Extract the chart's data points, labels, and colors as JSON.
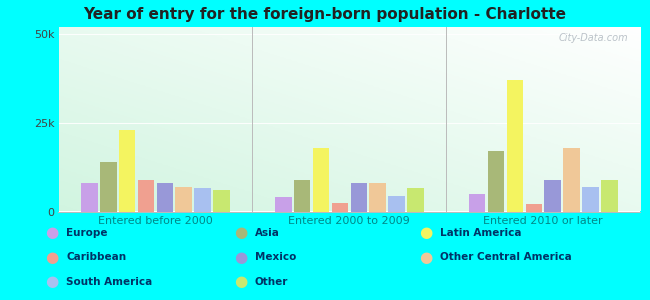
{
  "title": "Year of entry for the foreign-born population - Charlotte",
  "groups": [
    "Entered before 2000",
    "Entered 2000 to 2009",
    "Entered 2010 or later"
  ],
  "categories": [
    "Europe",
    "Asia",
    "Latin America",
    "Caribbean",
    "Mexico",
    "Other Central America",
    "South America",
    "Other"
  ],
  "values": {
    "Entered before 2000": [
      8000,
      14000,
      23000,
      9000,
      8000,
      7000,
      6500,
      6000
    ],
    "Entered 2000 to 2009": [
      4000,
      9000,
      18000,
      2500,
      8000,
      8000,
      4500,
      6500
    ],
    "Entered 2010 or later": [
      5000,
      17000,
      37000,
      2000,
      9000,
      18000,
      7000,
      9000
    ]
  },
  "colors": [
    "#c8a0e8",
    "#a8b878",
    "#f4f460",
    "#f0a090",
    "#9898d8",
    "#f0c898",
    "#a8c0f0",
    "#c8e870"
  ],
  "background_outer": "#00ffff",
  "background_plot": "#e8f8f0",
  "ylim": [
    0,
    52000
  ],
  "yticks": [
    0,
    25000,
    50000
  ],
  "ytick_labels": [
    "0",
    "25k",
    "50k"
  ],
  "legend_cols": [
    [
      [
        "Europe",
        "#c8a0e8"
      ],
      [
        "Caribbean",
        "#f0a090"
      ],
      [
        "South America",
        "#a8c0f0"
      ]
    ],
    [
      [
        "Asia",
        "#a8b878"
      ],
      [
        "Mexico",
        "#9898d8"
      ],
      [
        "Other",
        "#c8e870"
      ]
    ],
    [
      [
        "Latin America",
        "#f4f460"
      ],
      [
        "Other Central America",
        "#f0c898"
      ]
    ]
  ],
  "watermark": "City-Data.com",
  "xlabel_color": "#008888",
  "ytick_color": "#444444"
}
